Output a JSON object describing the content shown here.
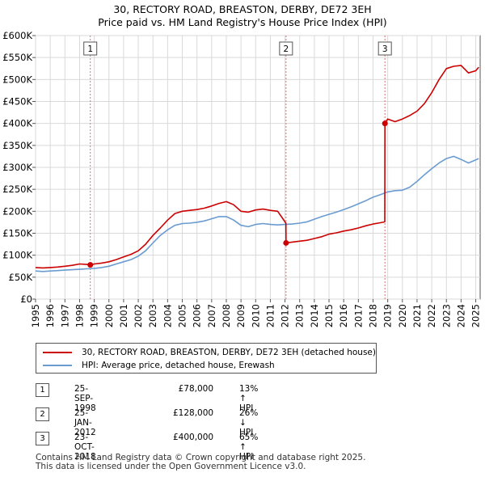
{
  "chart_data": {
    "type": "line",
    "title": "30, RECTORY ROAD, BREASTON, DERBY, DE72 3EH",
    "subtitle": "Price paid vs. HM Land Registry's House Price Index (HPI)",
    "xlim": [
      1995,
      2025.3
    ],
    "ylim": [
      0,
      600000
    ],
    "x_ticks": [
      "1995",
      "1996",
      "1997",
      "1998",
      "1999",
      "2000",
      "2001",
      "2002",
      "2003",
      "2004",
      "2005",
      "2006",
      "2007",
      "2008",
      "2009",
      "2010",
      "2011",
      "2012",
      "2013",
      "2014",
      "2015",
      "2016",
      "2017",
      "2018",
      "2019",
      "2020",
      "2021",
      "2022",
      "2023",
      "2024",
      "2025"
    ],
    "y_ticks": [
      {
        "value": 0,
        "label": "£0"
      },
      {
        "value": 50000,
        "label": "£50K"
      },
      {
        "value": 100000,
        "label": "£100K"
      },
      {
        "value": 150000,
        "label": "£150K"
      },
      {
        "value": 200000,
        "label": "£200K"
      },
      {
        "value": 250000,
        "label": "£250K"
      },
      {
        "value": 300000,
        "label": "£300K"
      },
      {
        "value": 350000,
        "label": "£350K"
      },
      {
        "value": 400000,
        "label": "£400K"
      },
      {
        "value": 450000,
        "label": "£450K"
      },
      {
        "value": 500000,
        "label": "£500K"
      },
      {
        "value": 550000,
        "label": "£550K"
      },
      {
        "value": 600000,
        "label": "£600K"
      }
    ],
    "grid": true,
    "series": [
      {
        "name": "30, RECTORY ROAD, BREASTON, DERBY, DE72 3EH (detached house)",
        "color": "#cc0000",
        "x": [
          1995,
          1995.5,
          1996,
          1996.5,
          1997,
          1997.5,
          1998,
          1998.5,
          1998.73,
          1999,
          1999.5,
          2000,
          2000.5,
          2001,
          2001.5,
          2002,
          2002.5,
          2003,
          2003.5,
          2004,
          2004.5,
          2005,
          2005.5,
          2006,
          2006.5,
          2007,
          2007.5,
          2008,
          2008.5,
          2009,
          2009.5,
          2010,
          2010.5,
          2011,
          2011.5,
          2012.06,
          2012.07,
          2012.5,
          2013,
          2013.5,
          2014,
          2014.5,
          2015,
          2015.5,
          2016,
          2016.5,
          2017,
          2017.5,
          2018,
          2018.5,
          2018.8,
          2018.81,
          2019,
          2019.5,
          2020,
          2020.5,
          2021,
          2021.5,
          2022,
          2022.5,
          2023,
          2023.5,
          2024,
          2024.5,
          2025,
          2025.2
        ],
        "values": [
          72000,
          71000,
          72000,
          73000,
          75000,
          77000,
          80000,
          79000,
          78000,
          80000,
          82000,
          85000,
          90000,
          96000,
          102000,
          110000,
          125000,
          145000,
          162000,
          180000,
          195000,
          200000,
          202000,
          204000,
          207000,
          212000,
          218000,
          222000,
          215000,
          200000,
          198000,
          203000,
          205000,
          202000,
          200000,
          173000,
          128000,
          130000,
          132000,
          134000,
          138000,
          142000,
          148000,
          151000,
          155000,
          158000,
          162000,
          167000,
          171000,
          174000,
          176000,
          400000,
          410000,
          404000,
          410000,
          418000,
          428000,
          445000,
          470000,
          500000,
          525000,
          530000,
          532000,
          515000,
          520000,
          528000
        ]
      },
      {
        "name": "HPI: Average price, detached house, Erewash",
        "color": "#6a9bd1",
        "x": [
          1995,
          1995.5,
          1996,
          1996.5,
          1997,
          1997.5,
          1998,
          1998.5,
          1999,
          1999.5,
          2000,
          2000.5,
          2001,
          2001.5,
          2002,
          2002.5,
          2003,
          2003.5,
          2004,
          2004.5,
          2005,
          2005.5,
          2006,
          2006.5,
          2007,
          2007.5,
          2008,
          2008.5,
          2009,
          2009.5,
          2010,
          2010.5,
          2011,
          2011.5,
          2012,
          2012.5,
          2013,
          2013.5,
          2014,
          2014.5,
          2015,
          2015.5,
          2016,
          2016.5,
          2017,
          2017.5,
          2018,
          2018.5,
          2019,
          2019.5,
          2020,
          2020.5,
          2021,
          2021.5,
          2022,
          2022.5,
          2023,
          2023.5,
          2024,
          2024.5,
          2025,
          2025.2
        ],
        "values": [
          64000,
          63000,
          64000,
          65000,
          66000,
          67000,
          68000,
          69000,
          70000,
          72000,
          75000,
          80000,
          85000,
          90000,
          98000,
          110000,
          128000,
          145000,
          158000,
          168000,
          172000,
          173000,
          175000,
          178000,
          183000,
          188000,
          188000,
          180000,
          168000,
          165000,
          170000,
          172000,
          170000,
          169000,
          170000,
          171000,
          173000,
          176000,
          182000,
          188000,
          193000,
          198000,
          204000,
          210000,
          217000,
          224000,
          232000,
          238000,
          244000,
          247000,
          248000,
          255000,
          268000,
          283000,
          297000,
          310000,
          320000,
          325000,
          318000,
          310000,
          317000,
          320000
        ]
      }
    ],
    "sales": [
      {
        "label": "1",
        "x": 1998.73,
        "price": 78000
      },
      {
        "label": "2",
        "x": 2012.07,
        "price": 128000
      },
      {
        "label": "3",
        "x": 2018.81,
        "price": 400000
      }
    ]
  },
  "legend": {
    "property_label": "30, RECTORY ROAD, BREASTON, DERBY, DE72 3EH (detached house)",
    "hpi_label": "HPI: Average price, detached house, Erewash"
  },
  "transactions": [
    {
      "num": "1",
      "date": "25-SEP-1998",
      "price": "£78,000",
      "hpi": "13% ↑ HPI"
    },
    {
      "num": "2",
      "date": "25-JAN-2012",
      "price": "£128,000",
      "hpi": "26% ↓ HPI"
    },
    {
      "num": "3",
      "date": "23-OCT-2018",
      "price": "£400,000",
      "hpi": "65% ↑ HPI"
    }
  ],
  "footer": {
    "line1": "Contains HM Land Registry data © Crown copyright and database right 2025.",
    "line2": "This data is licensed under the Open Government Licence v3.0."
  }
}
